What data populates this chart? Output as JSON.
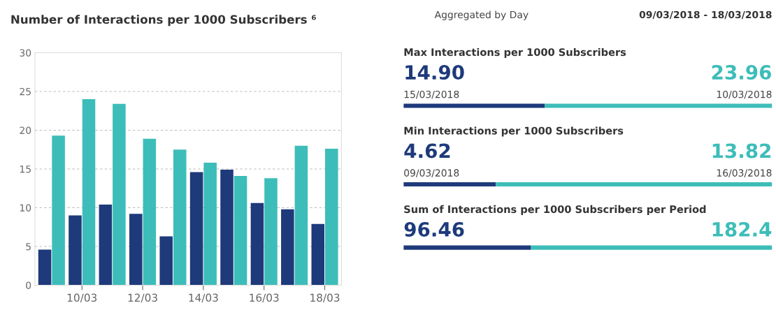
{
  "chart_data": [
    {
      "type": "bar",
      "title": "Number of Interactions per 1000 Subscribers ⁶",
      "categories": [
        null,
        "10/03",
        null,
        "12/03",
        null,
        "14/03",
        null,
        "16/03",
        null,
        "18/03"
      ],
      "series": [
        {
          "color": "#1e3a7b",
          "values": [
            4.6,
            9.0,
            10.4,
            9.2,
            6.3,
            14.6,
            14.9,
            10.6,
            9.8,
            7.9
          ]
        },
        {
          "color": "#3dbdb9",
          "values": [
            19.3,
            24.0,
            23.4,
            18.9,
            17.5,
            15.8,
            14.1,
            13.8,
            18.0,
            17.6
          ]
        }
      ],
      "ylim": [
        0,
        30
      ],
      "yticks": [
        0,
        5,
        10,
        15,
        20,
        25,
        30
      ],
      "grid": "y"
    },
    {
      "type": "other",
      "categories": [
        "Max Interactions per 1000 Subscribers",
        "Min Interactions per 1000 Subscribers",
        "Sum of Interactions per 1000 Subscribers per Period"
      ],
      "series": [
        {
          "color": "#1e3a7b",
          "values": [
            14.9,
            4.62,
            96.46
          ],
          "value_labels": [
            "14.90",
            "4.62",
            "96.46"
          ]
        },
        {
          "color": "#3dbdb9",
          "values": [
            23.96,
            13.82,
            182.4
          ],
          "value_labels": [
            "23.96",
            "13.82",
            "182.4"
          ]
        }
      ],
      "annotations": [
        "Aggregated by Day",
        "09/03/2018 - 18/03/2018",
        "15/03/2018",
        "10/03/2018",
        "09/03/2018",
        "16/03/2018"
      ]
    }
  ]
}
